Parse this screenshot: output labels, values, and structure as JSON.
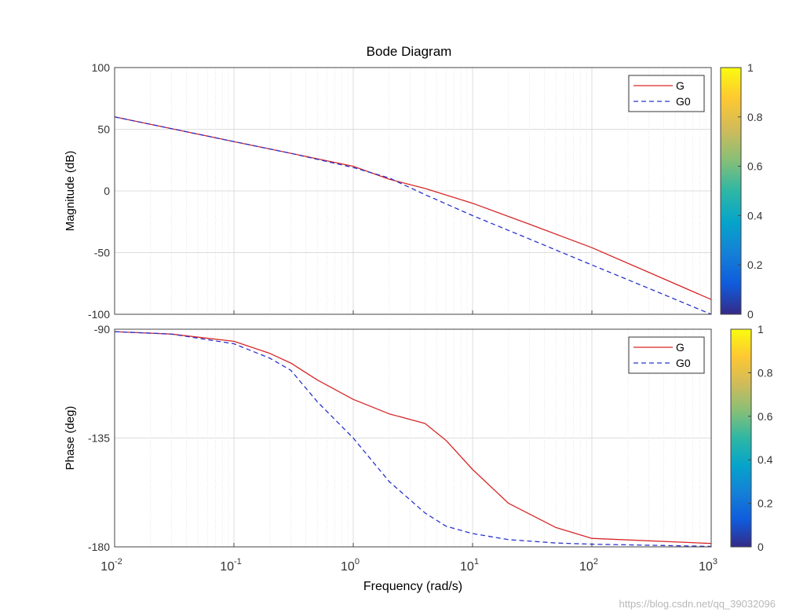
{
  "chart_data": {
    "type": "line",
    "title": "Bode Diagram",
    "xlabel": "Frequency  (rad/s)",
    "x_scale": "log",
    "xlim": [
      0.01,
      1000
    ],
    "x_tick_labels": [
      {
        "base": "10",
        "exp": "-2"
      },
      {
        "base": "10",
        "exp": "-1"
      },
      {
        "base": "10",
        "exp": "0"
      },
      {
        "base": "10",
        "exp": "1"
      },
      {
        "base": "10",
        "exp": "2"
      },
      {
        "base": "10",
        "exp": "3"
      }
    ],
    "panels": [
      {
        "name": "magnitude",
        "ylabel": "Magnitude (dB)",
        "ylim": [
          -100,
          100
        ],
        "yticks": [
          "100",
          "50",
          "0",
          "-50",
          "-100"
        ],
        "grid": true,
        "legend_position": "top-right",
        "x": [
          0.01,
          0.03,
          0.1,
          0.3,
          1,
          2,
          4,
          10,
          30,
          100,
          300,
          1000
        ],
        "series": [
          {
            "name": "G",
            "color": "#d62728",
            "style": "solid",
            "values": [
              60,
              50.5,
              40,
              30.5,
              20,
              9.5,
              2,
              -10,
              -27,
              -46,
              -66,
              -88
            ]
          },
          {
            "name": "G0",
            "color": "#2a34cc",
            "style": "dashed",
            "values": [
              60,
              50.5,
              40,
              30.5,
              19,
              10.5,
              -3,
              -20,
              -39,
              -60,
              -79,
              -100
            ]
          }
        ],
        "colorbar": {
          "ticks": [
            "0",
            "0.2",
            "0.4",
            "0.6",
            "0.8",
            "1"
          ]
        }
      },
      {
        "name": "phase",
        "ylabel": "Phase (deg)",
        "ylim": [
          -180,
          -90
        ],
        "yticks": [
          "-90",
          "-135",
          "-180"
        ],
        "grid": true,
        "legend_position": "top-right",
        "x": [
          0.01,
          0.03,
          0.1,
          0.2,
          0.3,
          0.5,
          1,
          2,
          4,
          6,
          10,
          20,
          50,
          100,
          1000
        ],
        "series": [
          {
            "name": "G",
            "color": "#d62728",
            "style": "solid",
            "values": [
              -91,
              -92,
              -95,
              -100,
              -104,
              -111,
              -119,
              -125,
              -129,
              -136,
              -148,
              -162,
              -172,
              -176.5,
              -178.6
            ]
          },
          {
            "name": "G0",
            "color": "#2a34cc",
            "style": "dashed",
            "values": [
              -91,
              -92,
              -96,
              -102,
              -107,
              -120,
              -135,
              -153,
              -166,
              -171.5,
              -174.5,
              -177,
              -178.4,
              -178.9,
              -179.8
            ]
          }
        ],
        "colorbar": {
          "ticks": [
            "0",
            "0.2",
            "0.4",
            "0.6",
            "0.8",
            "1"
          ]
        }
      }
    ]
  },
  "watermark": "https://blog.csdn.net/qq_39032096"
}
